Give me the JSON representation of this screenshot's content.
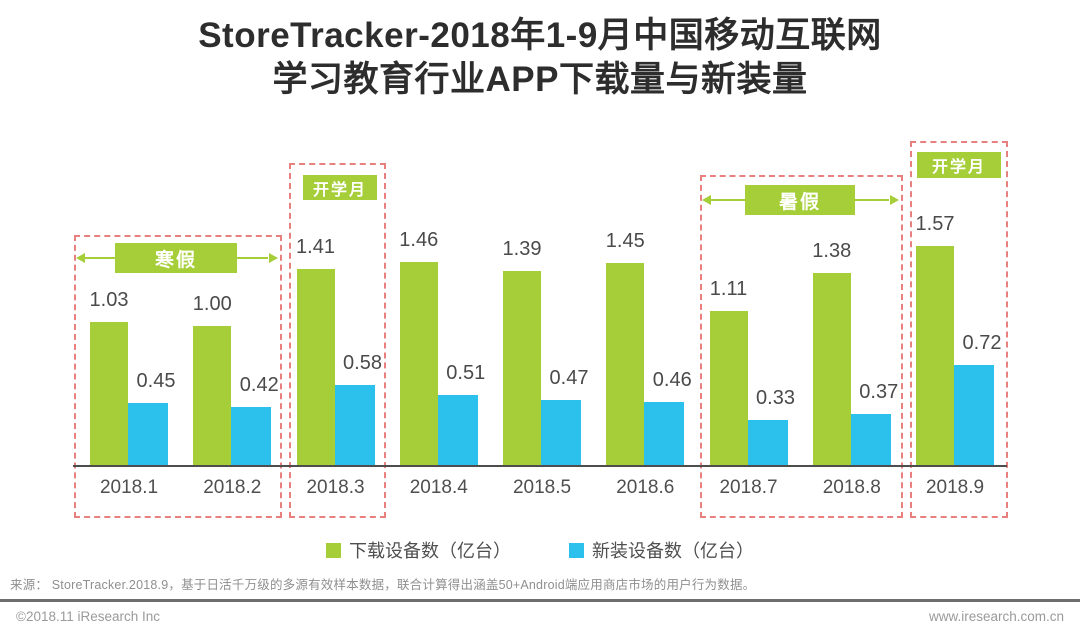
{
  "title": {
    "line1": "StoreTracker-2018年1-9月中国移动互联网",
    "line2": "学习教育行业APP下载量与新装量"
  },
  "chart_data": {
    "type": "bar",
    "categories": [
      "2018.1",
      "2018.2",
      "2018.3",
      "2018.4",
      "2018.5",
      "2018.6",
      "2018.7",
      "2018.8",
      "2018.9"
    ],
    "series": [
      {
        "name": "下载设备数（亿台）",
        "color": "#a5ce38",
        "values": [
          1.03,
          1.0,
          1.41,
          1.46,
          1.39,
          1.45,
          1.11,
          1.38,
          1.57
        ]
      },
      {
        "name": "新装设备数（亿台）",
        "color": "#2cc1ec",
        "values": [
          0.45,
          0.42,
          0.58,
          0.51,
          0.47,
          0.46,
          0.33,
          0.37,
          0.72
        ]
      }
    ],
    "ylim": [
      0,
      1.8
    ],
    "grid": false,
    "legend_position": "bottom",
    "value_label_format": "2-decimals",
    "annotations": [
      {
        "label": "寒假",
        "categories": [
          "2018.1",
          "2018.2"
        ],
        "arrows": true
      },
      {
        "label": "开学月",
        "categories": [
          "2018.3"
        ],
        "arrows": false
      },
      {
        "label": "暑假",
        "categories": [
          "2018.7",
          "2018.8"
        ],
        "arrows": true
      },
      {
        "label": "开学月",
        "categories": [
          "2018.9"
        ],
        "arrows": false
      }
    ],
    "annotation_box_color": "#e8807f",
    "annotation_label_bg": "#a5ce38"
  },
  "source": "来源： StoreTracker.2018.9，基于日活千万级的多源有效样本数据，联合计算得出涵盖50+Android端应用商店市场的用户行为数据。",
  "footer": {
    "left": "©2018.11 iResearch Inc",
    "right": "www.iresearch.com.cn"
  }
}
